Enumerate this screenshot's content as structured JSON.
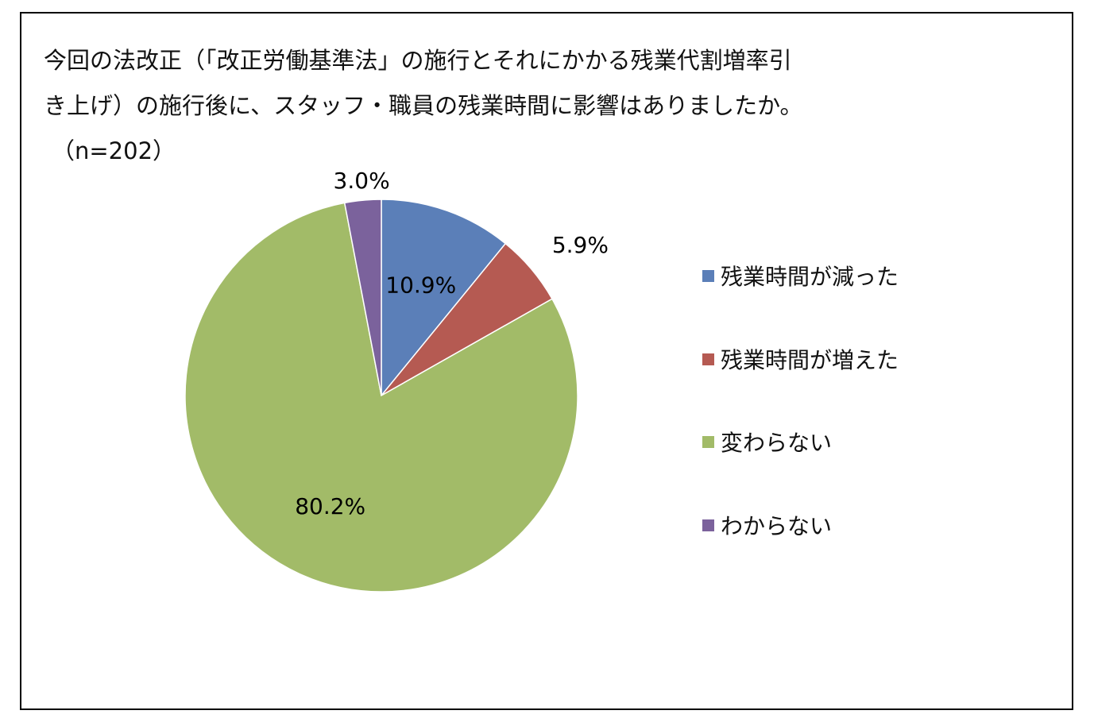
{
  "chart_data": {
    "type": "pie",
    "title_lines": [
      "今回の法改正（「改正労働基準法」の施行とそれにかかる残業代割増率引",
      "き上げ）の施行後に、スタッフ・職員の残業時間に影響はありましたか。",
      "（n=202）"
    ],
    "slices": [
      {
        "label": "残業時間が減った",
        "value": 10.9,
        "value_label": "10.9%",
        "color": "#5b7fb8"
      },
      {
        "label": "残業時間が増えた",
        "value": 5.9,
        "value_label": "5.9%",
        "color": "#b55a52"
      },
      {
        "label": "変わらない",
        "value": 80.2,
        "value_label": "80.2%",
        "color": "#a2bb68"
      },
      {
        "label": "わからない",
        "value": 3.0,
        "value_label": "3.0%",
        "color": "#7b629c"
      }
    ],
    "start_angle_deg": 0,
    "direction": "clockwise",
    "legend_position": "right"
  }
}
